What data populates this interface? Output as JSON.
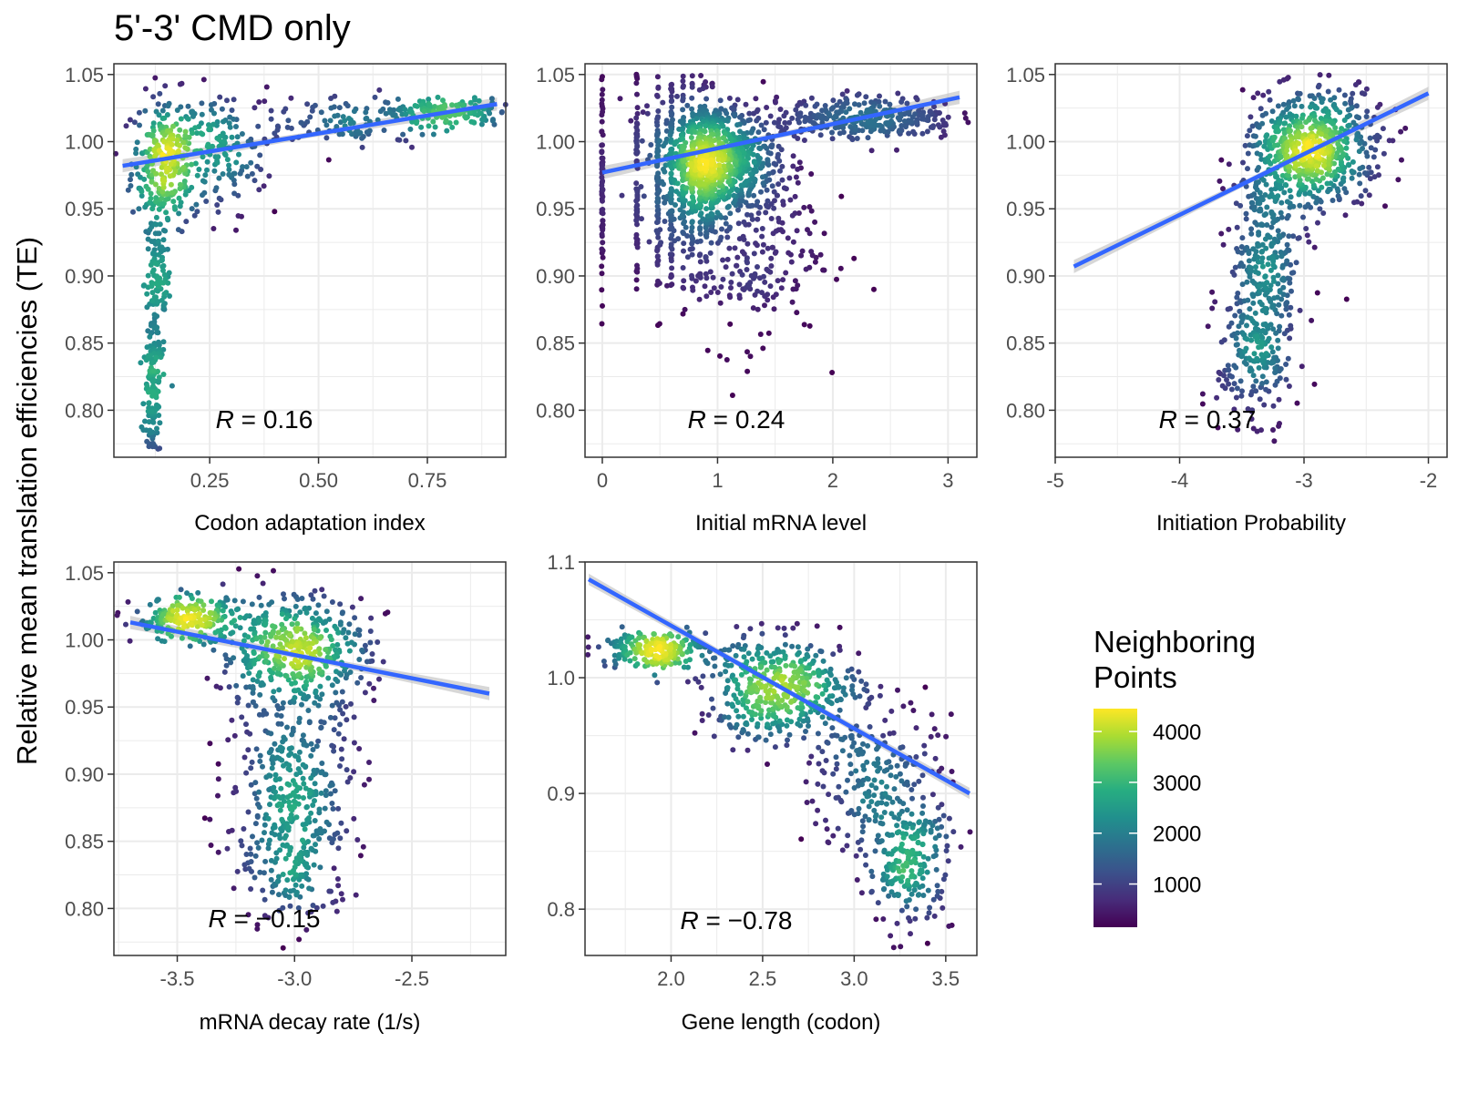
{
  "figure": {
    "title": "5'-3' CMD only",
    "ylabel": "Relative mean translation efficiencies (TE)"
  },
  "legend": {
    "title_line1": "Neighboring",
    "title_line2": "Points",
    "ticks": [
      "1000",
      "2000",
      "3000",
      "4000"
    ],
    "tick_values": [
      1000,
      2000,
      3000,
      4000
    ],
    "range": [
      150,
      4450
    ],
    "colormap": "viridis",
    "colors": [
      "#440154",
      "#472c7a",
      "#3b518b",
      "#2c718e",
      "#21908d",
      "#27ad81",
      "#5cc863",
      "#aadc32",
      "#fde725"
    ]
  },
  "colors": {
    "fit_line": "#3366ff",
    "confidence_band": "#bdbdbd",
    "grid": "#ebebeb",
    "panel_border": "#333333"
  },
  "chart_data": [
    {
      "id": "cai",
      "type": "scatter",
      "xlabel": "Codon adaptation index",
      "ylabel": "Relative mean translation efficiencies (TE)",
      "xlim": [
        0.03,
        0.93
      ],
      "ylim": [
        0.765,
        1.058
      ],
      "x_ticks": [
        0.25,
        0.5,
        0.75
      ],
      "x_tick_labels": [
        "0.25",
        "0.50",
        "0.75"
      ],
      "y_ticks": [
        0.8,
        0.85,
        0.9,
        0.95,
        1.0,
        1.05
      ],
      "y_tick_labels": [
        "0.80",
        "0.85",
        "0.90",
        "0.95",
        "1.00",
        "1.05"
      ],
      "fit": {
        "x": [
          0.05,
          0.91
        ],
        "y": [
          0.982,
          1.028
        ]
      },
      "r_label": "R",
      "r_value": "0.16",
      "point_clusters": [
        {
          "cx": 0.15,
          "cy": 0.985,
          "sx": 0.04,
          "sy": 0.025
        },
        {
          "cx": 0.13,
          "cy": 0.895,
          "sx": 0.015,
          "sy": 0.03
        },
        {
          "cx": 0.12,
          "cy": 0.81,
          "sx": 0.01,
          "sy": 0.025
        },
        {
          "cx": 0.28,
          "cy": 0.99,
          "sx": 0.05,
          "sy": 0.025
        },
        {
          "cx": 0.55,
          "cy": 1.015,
          "sx": 0.14,
          "sy": 0.01
        },
        {
          "cx": 0.8,
          "cy": 1.022,
          "sx": 0.07,
          "sy": 0.005
        }
      ]
    },
    {
      "id": "mrna",
      "type": "scatter",
      "xlabel": "Initial mRNA level",
      "ylabel": "Relative mean translation efficiencies (TE)",
      "xlim": [
        -0.15,
        3.25
      ],
      "ylim": [
        0.765,
        1.058
      ],
      "x_ticks": [
        0,
        1,
        2,
        3
      ],
      "x_tick_labels": [
        "0",
        "1",
        "2",
        "3"
      ],
      "y_ticks": [
        0.8,
        0.85,
        0.9,
        0.95,
        1.0,
        1.05
      ],
      "y_tick_labels": [
        "0.80",
        "0.85",
        "0.90",
        "0.95",
        "1.00",
        "1.05"
      ],
      "fit": {
        "x": [
          0.0,
          3.1
        ],
        "y": [
          0.977,
          1.033
        ]
      },
      "r_label": "R",
      "r_value": "0.24",
      "discrete_x": [
        0.0,
        0.3,
        0.48,
        0.6,
        0.7,
        0.78,
        0.85,
        0.9,
        0.95
      ],
      "point_clusters": [
        {
          "cx": 1.0,
          "cy": 0.99,
          "sx": 0.25,
          "sy": 0.02
        },
        {
          "cx": 1.2,
          "cy": 0.93,
          "sx": 0.35,
          "sy": 0.04
        },
        {
          "cx": 2.3,
          "cy": 1.018,
          "sx": 0.4,
          "sy": 0.008
        }
      ]
    },
    {
      "id": "init",
      "type": "scatter",
      "xlabel": "Initiation Probability",
      "ylabel": "Relative mean translation efficiencies (TE)",
      "xlim": [
        -5.0,
        -1.85
      ],
      "ylim": [
        0.765,
        1.058
      ],
      "x_ticks": [
        -5,
        -4,
        -3,
        -2
      ],
      "x_tick_labels": [
        "-5",
        "-4",
        "-3",
        "-2"
      ],
      "y_ticks": [
        0.8,
        0.85,
        0.9,
        0.95,
        1.0,
        1.05
      ],
      "y_tick_labels": [
        "0.80",
        "0.85",
        "0.90",
        "0.95",
        "1.00",
        "1.05"
      ],
      "fit": {
        "x": [
          -4.85,
          -2.0
        ],
        "y": [
          0.907,
          1.036
        ]
      },
      "r_label": "R",
      "r_value": "0.37",
      "point_clusters": [
        {
          "cx": -3.05,
          "cy": 0.99,
          "sx": 0.22,
          "sy": 0.022
        },
        {
          "cx": -3.3,
          "cy": 0.91,
          "sx": 0.15,
          "sy": 0.03
        },
        {
          "cx": -3.4,
          "cy": 0.84,
          "sx": 0.15,
          "sy": 0.03
        },
        {
          "cx": -2.7,
          "cy": 1.0,
          "sx": 0.2,
          "sy": 0.02
        }
      ]
    },
    {
      "id": "decay",
      "type": "scatter",
      "xlabel": "mRNA decay rate (1/s)",
      "ylabel": "Relative mean translation efficiencies (TE)",
      "xlim": [
        -3.77,
        -2.1
      ],
      "ylim": [
        0.765,
        1.058
      ],
      "x_ticks": [
        -3.5,
        -3.0,
        -2.5
      ],
      "x_tick_labels": [
        "-3.5",
        "-3.0",
        "-2.5"
      ],
      "y_ticks": [
        0.8,
        0.85,
        0.9,
        0.95,
        1.0,
        1.05
      ],
      "y_tick_labels": [
        "0.80",
        "0.85",
        "0.90",
        "0.95",
        "1.00",
        "1.05"
      ],
      "fit": {
        "x": [
          -3.7,
          -2.17
        ],
        "y": [
          1.013,
          0.96
        ]
      },
      "r_label": "R",
      "r_value": "−0.15",
      "point_clusters": [
        {
          "cx": -3.0,
          "cy": 0.99,
          "sx": 0.16,
          "sy": 0.022
        },
        {
          "cx": -3.0,
          "cy": 0.9,
          "sx": 0.15,
          "sy": 0.03
        },
        {
          "cx": -3.0,
          "cy": 0.84,
          "sx": 0.12,
          "sy": 0.03
        },
        {
          "cx": -3.45,
          "cy": 1.015,
          "sx": 0.12,
          "sy": 0.008
        }
      ]
    },
    {
      "id": "length",
      "type": "scatter",
      "xlabel": "Gene length (codon)",
      "ylabel": "Relative mean translation efficiencies (TE)",
      "xlim": [
        1.53,
        3.67
      ],
      "ylim": [
        0.76,
        1.1
      ],
      "x_ticks": [
        1.5,
        2.0,
        2.5,
        3.0,
        3.5
      ],
      "x_tick_labels": [
        "1.5",
        "2.0",
        "2.5",
        "3.0",
        "3.5"
      ],
      "y_ticks": [
        0.8,
        0.9,
        1.0,
        1.1
      ],
      "y_tick_labels": [
        "0.8",
        "0.9",
        "1.0",
        "1.1"
      ],
      "fit": {
        "x": [
          1.55,
          3.63
        ],
        "y": [
          1.085,
          0.9
        ]
      },
      "r_label": "R",
      "r_value": "−0.78",
      "point_clusters": [
        {
          "cx": 2.6,
          "cy": 0.99,
          "sx": 0.22,
          "sy": 0.022
        },
        {
          "cx": 1.9,
          "cy": 1.025,
          "sx": 0.15,
          "sy": 0.008
        },
        {
          "cx": 3.1,
          "cy": 0.91,
          "sx": 0.17,
          "sy": 0.035
        },
        {
          "cx": 3.3,
          "cy": 0.84,
          "sx": 0.12,
          "sy": 0.03
        }
      ]
    }
  ]
}
